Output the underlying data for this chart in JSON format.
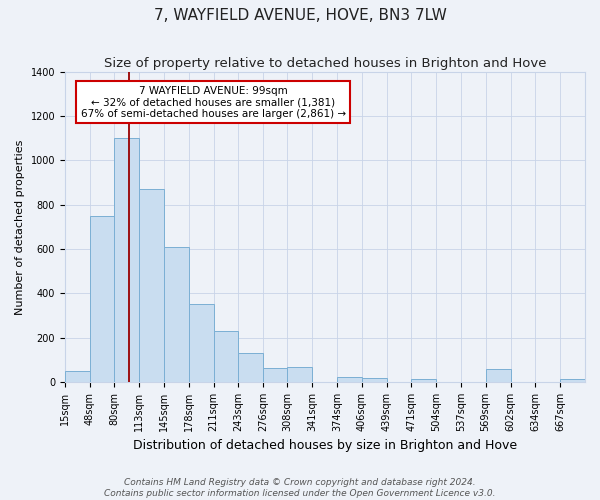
{
  "title": "7, WAYFIELD AVENUE, HOVE, BN3 7LW",
  "subtitle": "Size of property relative to detached houses in Brighton and Hove",
  "xlabel": "Distribution of detached houses by size in Brighton and Hove",
  "ylabel": "Number of detached properties",
  "bin_labels": [
    "15sqm",
    "48sqm",
    "80sqm",
    "113sqm",
    "145sqm",
    "178sqm",
    "211sqm",
    "243sqm",
    "276sqm",
    "308sqm",
    "341sqm",
    "374sqm",
    "406sqm",
    "439sqm",
    "471sqm",
    "504sqm",
    "537sqm",
    "569sqm",
    "602sqm",
    "634sqm",
    "667sqm"
  ],
  "bar_values": [
    50,
    750,
    1100,
    870,
    610,
    350,
    230,
    130,
    65,
    70,
    0,
    25,
    20,
    0,
    15,
    0,
    0,
    60,
    0,
    0,
    15
  ],
  "bin_edges": [
    15,
    48,
    80,
    113,
    145,
    178,
    211,
    243,
    276,
    308,
    341,
    374,
    406,
    439,
    471,
    504,
    537,
    569,
    602,
    634,
    667,
    700
  ],
  "bar_color": "#c9ddf0",
  "bar_edge_color": "#7bafd4",
  "red_line_x": 99,
  "annotation_title": "7 WAYFIELD AVENUE: 99sqm",
  "annotation_line1": "← 32% of detached houses are smaller (1,381)",
  "annotation_line2": "67% of semi-detached houses are larger (2,861) →",
  "annotation_box_facecolor": "#ffffff",
  "annotation_box_edgecolor": "#cc0000",
  "red_line_color": "#990000",
  "ylim": [
    0,
    1400
  ],
  "yticks": [
    0,
    200,
    400,
    600,
    800,
    1000,
    1200,
    1400
  ],
  "footer_line1": "Contains HM Land Registry data © Crown copyright and database right 2024.",
  "footer_line2": "Contains public sector information licensed under the Open Government Licence v3.0.",
  "background_color": "#eef2f8",
  "grid_color": "#c8d4e8",
  "title_fontsize": 11,
  "subtitle_fontsize": 9.5,
  "xlabel_fontsize": 9,
  "ylabel_fontsize": 8,
  "tick_fontsize": 7,
  "annotation_fontsize": 7.5,
  "footer_fontsize": 6.5
}
